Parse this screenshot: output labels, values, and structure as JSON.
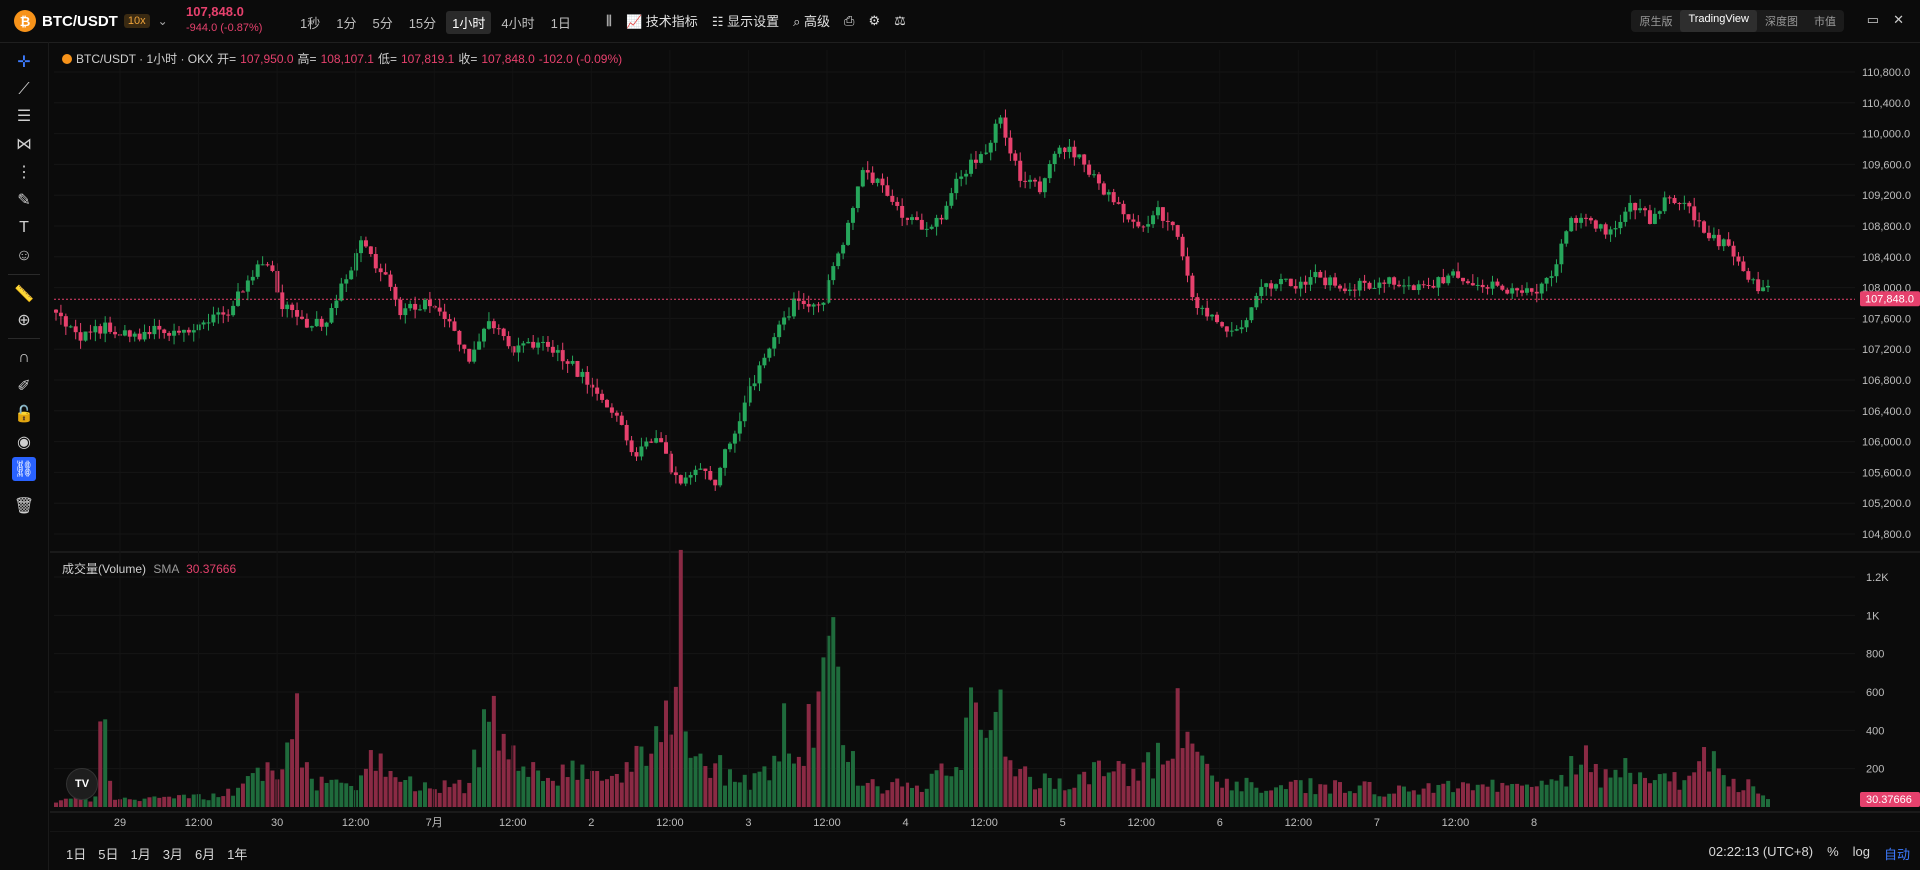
{
  "header": {
    "symbol": "BTC/USDT",
    "leverage": "10x",
    "last_price": "107,848.0",
    "change": "-944.0 (-0.87%)",
    "intervals": [
      "1秒",
      "1分",
      "5分",
      "15分",
      "1小时",
      "4小时",
      "1日"
    ],
    "active_interval": "1小时",
    "indicators_label": "技术指标",
    "display_settings_label": "显示设置",
    "advanced_label": "高级",
    "view_tabs": [
      "原生版",
      "TradingView",
      "深度图",
      "市值"
    ],
    "active_view": "TradingView"
  },
  "legend": {
    "title": "BTC/USDT · 1小时 · OKX",
    "open_label": "开=",
    "open": "107,950.0",
    "high_label": "高=",
    "high": "108,107.1",
    "low_label": "低=",
    "low": "107,819.1",
    "close_label": "收=",
    "close": "107,848.0",
    "change": "-102.0 (-0.09%)"
  },
  "volume_legend": {
    "label": "成交量(Volume)",
    "sma_label": "SMA",
    "sma_value": "30.37666"
  },
  "price_axis": {
    "ticks": [
      "110,800.0",
      "110,400.0",
      "110,000.0",
      "109,600.0",
      "109,200.0",
      "108,800.0",
      "108,400.0",
      "108,000.0",
      "107,600.0",
      "107,200.0",
      "106,800.0",
      "106,400.0",
      "106,000.0",
      "105,600.0",
      "105,200.0",
      "104,800.0"
    ],
    "current_price_tag": "107,848.0"
  },
  "volume_axis": {
    "ticks": [
      "1.2K",
      "1K",
      "800",
      "600",
      "400",
      "200"
    ],
    "current_tag": "30.37666"
  },
  "time_axis": [
    "29",
    "12:00",
    "30",
    "12:00",
    "7月",
    "12:00",
    "2",
    "12:00",
    "3",
    "12:00",
    "4",
    "12:00",
    "5",
    "12:00",
    "6",
    "12:00",
    "7",
    "12:00",
    "8"
  ],
  "range_buttons": [
    "1日",
    "5日",
    "1月",
    "3月",
    "6月",
    "1年"
  ],
  "status": {
    "clock": "02:22:13 (UTC+8)",
    "percent": "%",
    "log": "log",
    "auto": "自动"
  },
  "colors": {
    "up": "#26a65b",
    "down": "#e6416d",
    "background": "#0b0b0b"
  },
  "chart_data": {
    "type": "candlestick",
    "price_range": [
      104600,
      111000
    ],
    "volume_range": [
      0,
      1250
    ],
    "anchors": [
      [
        0,
        107650
      ],
      [
        5,
        107350
      ],
      [
        10,
        107500
      ],
      [
        15,
        107350
      ],
      [
        20,
        107450
      ],
      [
        25,
        107400
      ],
      [
        30,
        107500
      ],
      [
        35,
        107700
      ],
      [
        40,
        108200
      ],
      [
        43,
        108350
      ],
      [
        46,
        107800
      ],
      [
        50,
        107550
      ],
      [
        55,
        107500
      ],
      [
        58,
        108000
      ],
      [
        62,
        108550
      ],
      [
        66,
        108250
      ],
      [
        70,
        107700
      ],
      [
        75,
        107800
      ],
      [
        80,
        107550
      ],
      [
        84,
        107000
      ],
      [
        88,
        107600
      ],
      [
        93,
        107200
      ],
      [
        98,
        107300
      ],
      [
        103,
        107100
      ],
      [
        108,
        106800
      ],
      [
        113,
        106400
      ],
      [
        118,
        105800
      ],
      [
        122,
        106100
      ],
      [
        126,
        105500
      ],
      [
        130,
        105600
      ],
      [
        134,
        105500
      ],
      [
        140,
        106500
      ],
      [
        145,
        107250
      ],
      [
        150,
        107800
      ],
      [
        155,
        107700
      ],
      [
        160,
        108600
      ],
      [
        164,
        109500
      ],
      [
        168,
        109300
      ],
      [
        172,
        108900
      ],
      [
        176,
        108800
      ],
      [
        180,
        108900
      ],
      [
        184,
        109500
      ],
      [
        188,
        109700
      ],
      [
        192,
        110200
      ],
      [
        196,
        109400
      ],
      [
        200,
        109300
      ],
      [
        204,
        109800
      ],
      [
        208,
        109700
      ],
      [
        212,
        109300
      ],
      [
        216,
        109100
      ],
      [
        220,
        108800
      ],
      [
        224,
        109000
      ],
      [
        228,
        108700
      ],
      [
        232,
        107700
      ],
      [
        236,
        107600
      ],
      [
        240,
        107400
      ],
      [
        244,
        107900
      ],
      [
        248,
        108100
      ],
      [
        252,
        108000
      ],
      [
        256,
        108150
      ],
      [
        260,
        108050
      ],
      [
        264,
        108000
      ],
      [
        268,
        108050
      ],
      [
        272,
        108100
      ],
      [
        276,
        108000
      ],
      [
        280,
        108050
      ],
      [
        284,
        108150
      ],
      [
        288,
        108100
      ],
      [
        292,
        108000
      ],
      [
        296,
        107950
      ],
      [
        300,
        107900
      ],
      [
        304,
        108100
      ],
      [
        308,
        108900
      ],
      [
        312,
        108800
      ],
      [
        316,
        108700
      ],
      [
        320,
        109100
      ],
      [
        324,
        108900
      ],
      [
        328,
        109200
      ],
      [
        332,
        109000
      ],
      [
        336,
        108700
      ],
      [
        340,
        108500
      ],
      [
        344,
        108100
      ],
      [
        348,
        107950
      ]
    ],
    "volume_anchors": [
      [
        0,
        30
      ],
      [
        8,
        50
      ],
      [
        9,
        600
      ],
      [
        12,
        40
      ],
      [
        30,
        50
      ],
      [
        38,
        90
      ],
      [
        42,
        220
      ],
      [
        46,
        160
      ],
      [
        48,
        540
      ],
      [
        52,
        130
      ],
      [
        60,
        100
      ],
      [
        66,
        290
      ],
      [
        70,
        130
      ],
      [
        80,
        110
      ],
      [
        84,
        100
      ],
      [
        88,
        570
      ],
      [
        90,
        330
      ],
      [
        100,
        130
      ],
      [
        105,
        180
      ],
      [
        110,
        160
      ],
      [
        114,
        160
      ],
      [
        118,
        330
      ],
      [
        120,
        250
      ],
      [
        126,
        560
      ],
      [
        127,
        1150
      ],
      [
        128,
        310
      ],
      [
        134,
        210
      ],
      [
        140,
        120
      ],
      [
        146,
        200
      ],
      [
        148,
        450
      ],
      [
        152,
        300
      ],
      [
        155,
        600
      ],
      [
        157,
        800
      ],
      [
        158,
        1200
      ],
      [
        160,
        350
      ],
      [
        164,
        120
      ],
      [
        170,
        110
      ],
      [
        176,
        100
      ],
      [
        180,
        170
      ],
      [
        184,
        160
      ],
      [
        186,
        620
      ],
      [
        188,
        480
      ],
      [
        190,
        620
      ],
      [
        192,
        500
      ],
      [
        194,
        240
      ],
      [
        198,
        130
      ],
      [
        208,
        130
      ],
      [
        212,
        190
      ],
      [
        220,
        160
      ],
      [
        226,
        300
      ],
      [
        228,
        450
      ],
      [
        230,
        340
      ],
      [
        232,
        210
      ],
      [
        236,
        170
      ],
      [
        240,
        120
      ],
      [
        250,
        110
      ],
      [
        260,
        110
      ],
      [
        270,
        90
      ],
      [
        280,
        100
      ],
      [
        290,
        110
      ],
      [
        300,
        90
      ],
      [
        306,
        120
      ],
      [
        310,
        280
      ],
      [
        314,
        140
      ],
      [
        320,
        200
      ],
      [
        326,
        140
      ],
      [
        332,
        150
      ],
      [
        336,
        270
      ],
      [
        340,
        130
      ],
      [
        345,
        100
      ],
      [
        348,
        30
      ]
    ]
  }
}
